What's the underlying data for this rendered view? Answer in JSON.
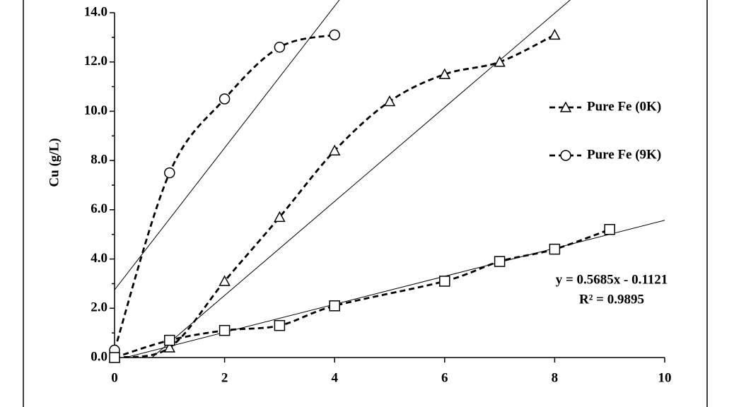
{
  "chart_data": {
    "type": "line",
    "ylabel": "Cu (g/L)",
    "xlim": [
      0,
      10
    ],
    "xticks": [
      0,
      2,
      4,
      6,
      8,
      10
    ],
    "ylim": [
      0,
      14
    ],
    "yticks": [
      {
        "value": 0,
        "label": "0.0"
      },
      {
        "value": 2,
        "label": "2.0"
      },
      {
        "value": 4,
        "label": "4.0"
      },
      {
        "value": 6,
        "label": "6.0"
      },
      {
        "value": 8,
        "label": "8.0"
      },
      {
        "value": 10,
        "label": "10.0"
      },
      {
        "value": 12,
        "label": "12.0"
      },
      {
        "value": 14,
        "label": "14.0"
      }
    ],
    "series": [
      {
        "name": "Pure Fe (0K)",
        "marker": "triangle",
        "color": "#000000",
        "x": [
          0,
          1,
          2,
          3,
          4,
          5,
          6,
          7,
          8
        ],
        "values": [
          0,
          0.4,
          3.1,
          5.7,
          8.4,
          10.4,
          11.5,
          12.0,
          13.1
        ]
      },
      {
        "name": "Pure Fe (9K)",
        "marker": "circle",
        "color": "#000000",
        "x": [
          0,
          1,
          2,
          3,
          4
        ],
        "values": [
          0.3,
          7.5,
          10.5,
          12.6,
          13.1
        ]
      },
      {
        "marker": "square",
        "color": "#000000",
        "x": [
          0,
          1,
          2,
          3,
          4,
          6,
          7,
          8,
          9
        ],
        "values": [
          0,
          0.7,
          1.1,
          1.3,
          2.1,
          3.1,
          3.9,
          4.4,
          5.2
        ]
      }
    ],
    "trendlines": [
      {
        "slope": 2.88,
        "intercept": 2.75
      },
      {
        "slope": 1.91,
        "intercept": -1.3
      },
      {
        "slope": 0.5685,
        "intercept": -0.1121
      }
    ],
    "annotations": [
      "y = 0.5685x - 0.1121",
      "R² = 0.9895"
    ]
  }
}
